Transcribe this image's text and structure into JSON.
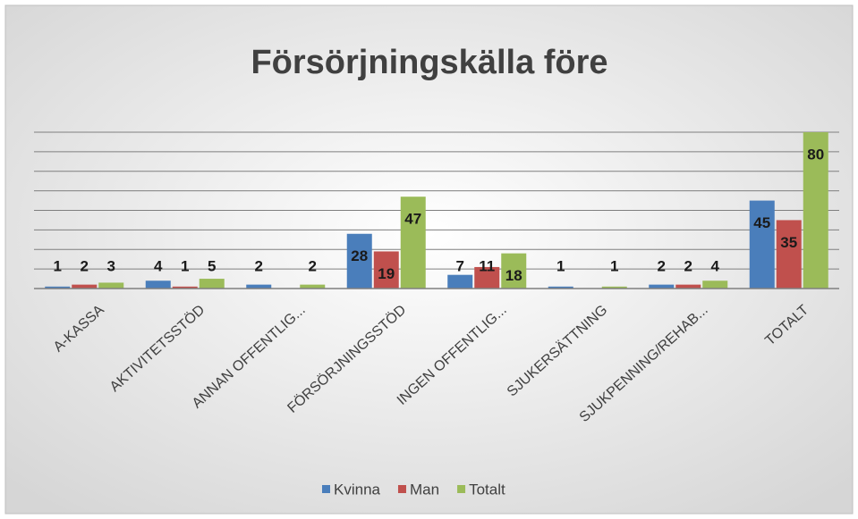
{
  "chart_data": {
    "type": "bar",
    "title": "Försörjningskälla före",
    "categories": [
      "A-KASSA",
      "AKTIVITETSSTÖD",
      "ANNAN OFFENTLIG...",
      "FÖRSÖRJNINGSSTÖD",
      "INGEN OFFENTLIG...",
      "SJUKERSÄTTNING",
      "SJUKPENNING/REHAB...",
      "TOTALT"
    ],
    "series": [
      {
        "name": "Kvinna",
        "color": "#4a7ebb",
        "values": [
          1,
          4,
          2,
          28,
          7,
          1,
          2,
          45
        ]
      },
      {
        "name": "Man",
        "color": "#c0504d",
        "values": [
          2,
          1,
          null,
          19,
          11,
          null,
          2,
          35
        ]
      },
      {
        "name": "Totalt",
        "color": "#9bbb59",
        "values": [
          3,
          5,
          2,
          47,
          18,
          1,
          4,
          80
        ]
      }
    ],
    "ylim": [
      0,
      80
    ],
    "yticks": [
      0,
      10,
      20,
      30,
      40,
      50,
      60,
      70,
      80
    ],
    "grid": true,
    "legend": "bottom"
  }
}
